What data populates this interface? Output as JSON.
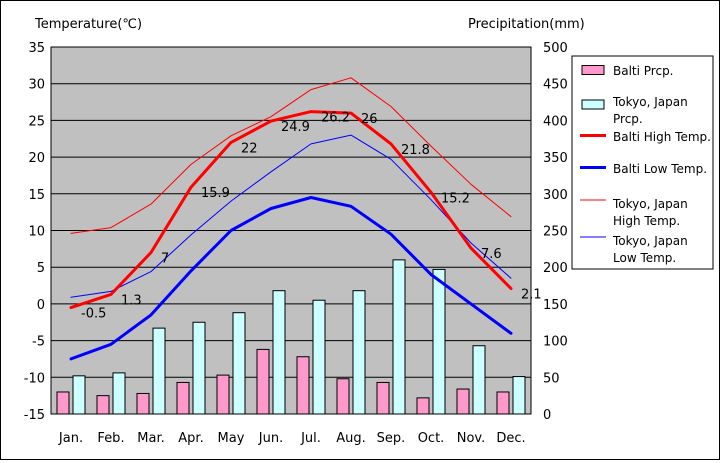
{
  "chart_data": {
    "type": "bar+line",
    "y_left_label": "Temperature(℃)",
    "y_right_label": "Precipitation(mm)",
    "y_left_range": [
      -15,
      35
    ],
    "y_left_ticks": [
      "35",
      "30",
      "25",
      "20",
      "15",
      "10",
      "5",
      "0",
      "-5",
      "-10",
      "-15"
    ],
    "y_right_range": [
      0,
      500
    ],
    "y_right_ticks": [
      "500",
      "450",
      "400",
      "350",
      "300",
      "250",
      "200",
      "150",
      "100",
      "50",
      "0"
    ],
    "categories": [
      "Jan.",
      "Feb.",
      "Mar.",
      "Apr.",
      "May",
      "Jun.",
      "Jul.",
      "Aug.",
      "Sep.",
      "Oct.",
      "Nov.",
      "Dec."
    ],
    "grid": "horizontal",
    "bars": [
      {
        "name": "Balti Prcp.",
        "color": "#ff99cc",
        "values": [
          30,
          25,
          28,
          43,
          53,
          88,
          78,
          48,
          43,
          22,
          34,
          30
        ]
      },
      {
        "name": "Tokyo, Japan Prcp.",
        "color": "#ccffff",
        "values": [
          52,
          56,
          117,
          125,
          138,
          168,
          155,
          168,
          210,
          197,
          93,
          51
        ]
      }
    ],
    "lines": [
      {
        "name": "Balti High Temp.",
        "color": "#ff0000",
        "width": 3,
        "values": [
          -0.5,
          1.3,
          7,
          15.9,
          22,
          24.9,
          26.2,
          26,
          21.8,
          15.2,
          7.6,
          2.1
        ],
        "labels": [
          "-0.5",
          "1.3",
          "7",
          "15.9",
          "22",
          "24.9",
          "26.2",
          "26",
          "21.8",
          "15.2",
          "7.6",
          "2.1"
        ]
      },
      {
        "name": "Balti Low Temp.",
        "color": "#0000ff",
        "width": 3,
        "values": [
          -7.5,
          -5.5,
          -1.5,
          4.5,
          10,
          13,
          14.5,
          13.3,
          9.5,
          4,
          0,
          -4
        ]
      },
      {
        "name": "Tokyo, Japan High Temp.",
        "color": "#ff0000",
        "width": 1,
        "values": [
          9.6,
          10.4,
          13.6,
          19,
          22.9,
          25.5,
          29.2,
          30.8,
          26.9,
          21.5,
          16.3,
          11.9
        ]
      },
      {
        "name": "Tokyo, Japan Low Temp.",
        "color": "#0000ff",
        "width": 1,
        "values": [
          0.9,
          1.7,
          4.4,
          9.4,
          14,
          18,
          21.8,
          23,
          19.7,
          14.2,
          8.3,
          3.5
        ]
      }
    ],
    "legend": [
      {
        "label_lines": [
          "Balti Prcp."
        ],
        "kind": "bar",
        "color": "#ff99cc"
      },
      {
        "label_lines": [
          "Tokyo, Japan",
          "Prcp."
        ],
        "kind": "bar",
        "color": "#ccffff"
      },
      {
        "label_lines": [
          "Balti High Temp."
        ],
        "kind": "line",
        "color": "#ff0000",
        "width": 3
      },
      {
        "label_lines": [
          "Balti Low Temp."
        ],
        "kind": "line",
        "color": "#0000ff",
        "width": 3
      },
      {
        "label_lines": [
          "Tokyo, Japan",
          "High Temp."
        ],
        "kind": "line",
        "color": "#ff0000",
        "width": 1
      },
      {
        "label_lines": [
          "Tokyo, Japan",
          "Low Temp."
        ],
        "kind": "line",
        "color": "#0000ff",
        "width": 1
      }
    ],
    "plot_background": "#c0c0c0",
    "legend_position": "right"
  }
}
